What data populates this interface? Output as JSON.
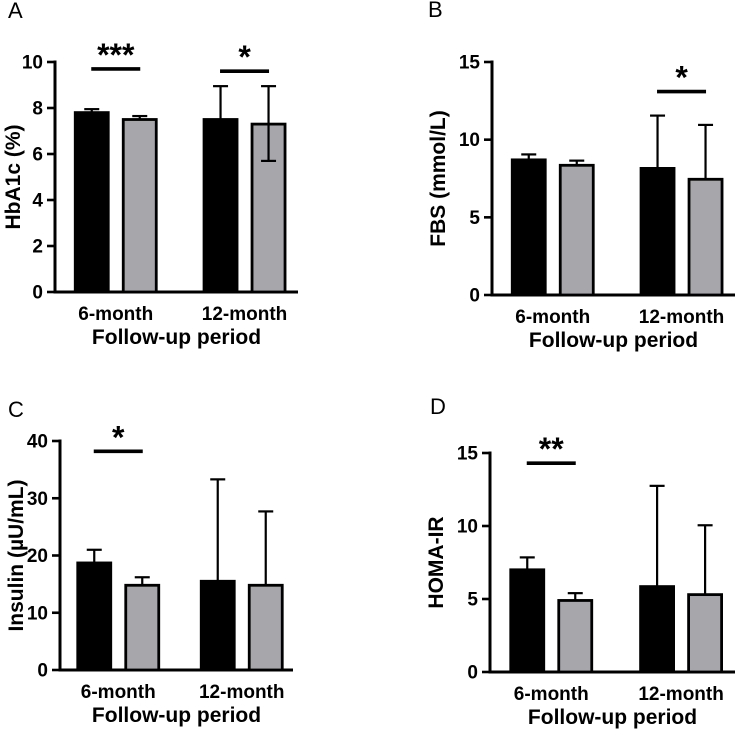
{
  "figure": {
    "background": "#ffffff",
    "xlabel_shared": "Follow-up period"
  },
  "colors": {
    "bar_black": "#000000",
    "bar_gray": "#a7a7ab",
    "axis": "#000000",
    "text": "#000000"
  },
  "chart_data": [
    {
      "type": "bar",
      "panel": "A",
      "ylabel": "HbA1c (%)",
      "xlabel": "Follow-up period",
      "ylim": [
        0,
        10
      ],
      "yticks": [
        0,
        2,
        4,
        6,
        8,
        10
      ],
      "grid": false,
      "legend": "none",
      "categories": [
        "6-month",
        "12-month"
      ],
      "series": [
        {
          "name": "black",
          "color": "#000000",
          "values": [
            7.8,
            7.5
          ],
          "err_up": [
            0.15,
            1.45
          ]
        },
        {
          "name": "gray",
          "color": "#a7a7ab",
          "values": [
            7.5,
            7.3
          ],
          "err_up": [
            0.15,
            1.65
          ],
          "err_down": [
            0,
            1.6
          ]
        }
      ],
      "significance": [
        {
          "group": 0,
          "label": "***",
          "y": 9.7
        },
        {
          "group": 1,
          "label": "*",
          "y": 9.6
        }
      ]
    },
    {
      "type": "bar",
      "panel": "B",
      "ylabel": "FBS (mmol/L)",
      "xlabel": "Follow-up period",
      "ylim": [
        0,
        15
      ],
      "yticks": [
        0,
        5,
        10,
        15
      ],
      "grid": false,
      "legend": "none",
      "categories": [
        "6-month",
        "12-month"
      ],
      "series": [
        {
          "name": "black",
          "color": "#000000",
          "values": [
            8.7,
            8.15
          ],
          "err_up": [
            0.35,
            3.4
          ]
        },
        {
          "name": "gray",
          "color": "#a7a7ab",
          "values": [
            8.35,
            7.45
          ],
          "err_up": [
            0.3,
            3.5
          ]
        }
      ],
      "significance": [
        {
          "group": 1,
          "label": "*",
          "y": 13.1
        }
      ]
    },
    {
      "type": "bar",
      "panel": "C",
      "ylabel": "Insulin (µU/mL)",
      "xlabel": "Follow-up period",
      "ylim": [
        0,
        40
      ],
      "yticks": [
        0,
        10,
        20,
        30,
        40
      ],
      "grid": false,
      "legend": "none",
      "categories": [
        "6-month",
        "12-month"
      ],
      "series": [
        {
          "name": "black",
          "color": "#000000",
          "values": [
            18.7,
            15.5
          ],
          "err_up": [
            2.3,
            17.8
          ]
        },
        {
          "name": "gray",
          "color": "#a7a7ab",
          "values": [
            14.8,
            14.8
          ],
          "err_up": [
            1.4,
            12.9
          ]
        }
      ],
      "significance": [
        {
          "group": 0,
          "label": "*",
          "y": 38.2
        }
      ]
    },
    {
      "type": "bar",
      "panel": "D",
      "ylabel": "HOMA-IR",
      "xlabel": "Follow-up period",
      "ylim": [
        0,
        15
      ],
      "yticks": [
        0,
        5,
        10,
        15
      ],
      "grid": false,
      "legend": "none",
      "categories": [
        "6-month",
        "12-month"
      ],
      "series": [
        {
          "name": "black",
          "color": "#000000",
          "values": [
            7.0,
            5.85
          ],
          "err_up": [
            0.85,
            6.9
          ]
        },
        {
          "name": "gray",
          "color": "#a7a7ab",
          "values": [
            4.9,
            5.3
          ],
          "err_up": [
            0.5,
            4.75
          ]
        }
      ],
      "significance": [
        {
          "group": 0,
          "label": "**",
          "y": 14.3
        }
      ]
    }
  ]
}
